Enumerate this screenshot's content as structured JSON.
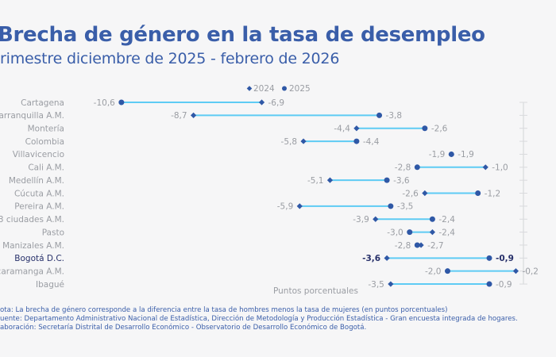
{
  "header": {
    "title": "Brecha de género en la tasa de desempleo",
    "subtitle": "rimestre diciembre de 2025 - febrero de 2026"
  },
  "colors": {
    "title": "#3a5ea9",
    "marker": "#2f58a6",
    "connector": "#5ecbf4",
    "axis": "#d9dadd",
    "label": "#9a9da3",
    "highlight_label": "#27306a"
  },
  "chart_data": {
    "type": "dumbbell",
    "title": "Brecha de género en la tasa de desempleo",
    "subtitle": "rimestre diciembre de 2025 - febrero de 2026",
    "xlabel": "Puntos porcentuales",
    "ylabel": "",
    "xlim": [
      -10.6,
      0
    ],
    "legend": {
      "position": "top-center",
      "entries": [
        {
          "name": "2024",
          "marker": "diamond"
        },
        {
          "name": "2025",
          "marker": "circle"
        }
      ]
    },
    "highlight": "Bogotá D.C.",
    "categories": [
      "Cartagena",
      "arranquilla A.M.",
      "Montería",
      "Colombia",
      "Villavicencio",
      "Cali A.M.",
      "Medellín A.M.",
      "Cúcuta A.M.",
      "Pereira A.M.",
      "3 ciudades A.M.",
      "Pasto",
      "Manizales A.M.",
      "Bogotá D.C.",
      "caramanga A.M.",
      "Ibagué"
    ],
    "series": [
      {
        "name": "2024",
        "values": [
          -6.9,
          -8.7,
          -4.4,
          -5.8,
          -1.9,
          -1.0,
          -5.1,
          -2.6,
          -5.9,
          -3.9,
          -2.4,
          -2.7,
          -3.6,
          -0.2,
          -3.5
        ]
      },
      {
        "name": "2025",
        "values": [
          -10.6,
          -3.8,
          -2.6,
          -4.4,
          -1.9,
          -2.8,
          -3.6,
          -1.2,
          -3.5,
          -2.4,
          -3.0,
          -2.8,
          -0.9,
          -2.0,
          -0.9
        ]
      }
    ],
    "value_labels": {
      "2024": [
        "-6,9",
        "-8,7",
        "-4,4",
        "-5,8",
        "-1,9",
        "-1,0",
        "-5,1",
        "-2,6",
        "-5,9",
        "-3,9",
        "-2,4",
        "-2,7",
        "-3,6",
        "-0,2",
        "-3,5"
      ],
      "2025": [
        "-10,6",
        "-3,8",
        "-2,6",
        "-4,4",
        "-1,9",
        "-2,8",
        "-3,6",
        "-1,2",
        "-3,5",
        "-2,4",
        "-3,0",
        "-2,8",
        "-0,9",
        "-2,0",
        "-0,9"
      ]
    }
  },
  "notes": [
    "ota: La brecha de género corresponde a la diferencia entre la tasa de hombres menos la tasa de mujeres (en puntos porcentuales)",
    "uente: Departamento Administrativo Nacional de Estadística, Dirección de Metodología y Producción Estadística - Gran encuesta integrada de hogares.",
    "aboración: Secretaría Distrital de Desarrollo Económico - Observatorio de Desarrollo Económico de Bogotá."
  ]
}
